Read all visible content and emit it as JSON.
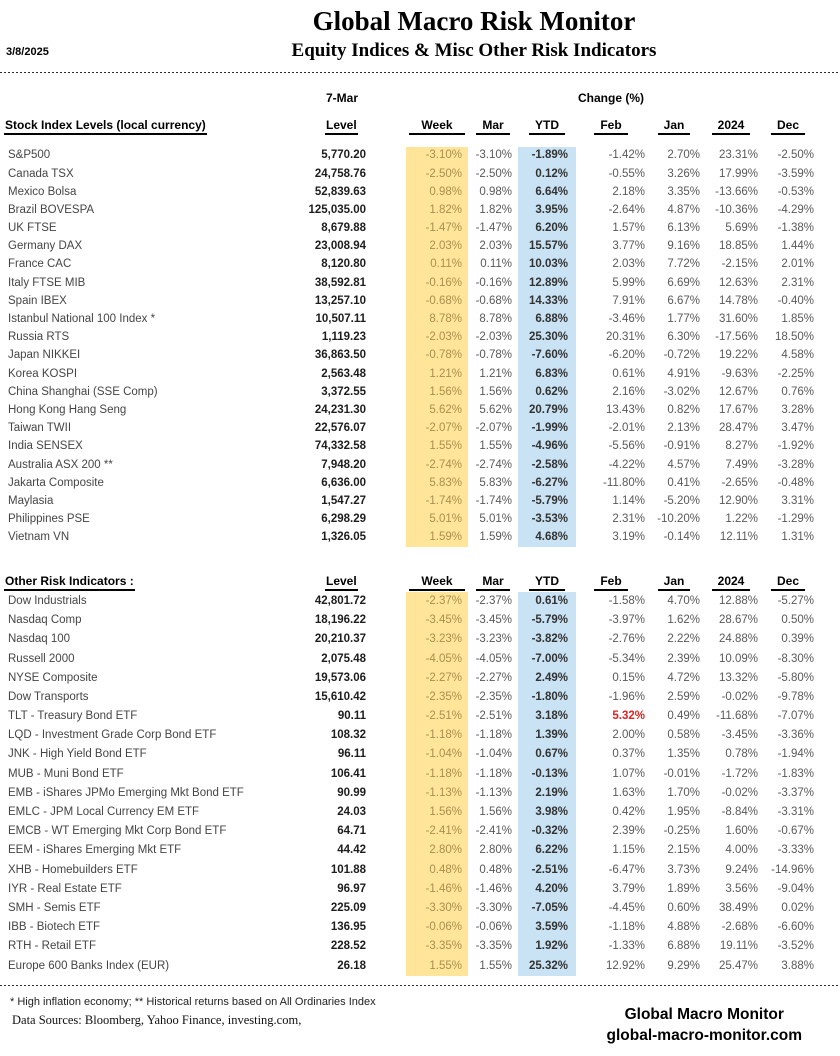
{
  "header": {
    "date": "3/8/2025",
    "title": "Global Macro Risk Monitor",
    "subtitle": "Equity Indices & Misc Other Risk Indicators"
  },
  "columns": {
    "group_date": "7-Mar",
    "group_change": "Change (%)",
    "level": "Level",
    "week": "Week",
    "mar": "Mar",
    "ytd": "YTD",
    "feb": "Feb",
    "jan": "Jan",
    "y2024": "2024",
    "dec": "Dec"
  },
  "colors": {
    "week_band": "#ffe599",
    "week_text": "#a98f4d",
    "ytd_band": "#c9e3f4",
    "red_value": "#dd2222"
  },
  "table1": {
    "section_label": "Stock Index Levels (local currency)",
    "rows": [
      {
        "name": "S&P500",
        "level": "5,770.20",
        "week": "-3.10%",
        "mar": "-3.10%",
        "ytd": "-1.89%",
        "feb": "-1.42%",
        "jan": "2.70%",
        "y2024": "23.31%",
        "dec": "-2.50%"
      },
      {
        "name": "Canada TSX",
        "level": "24,758.76",
        "week": "-2.50%",
        "mar": "-2.50%",
        "ytd": "0.12%",
        "feb": "-0.55%",
        "jan": "3.26%",
        "y2024": "17.99%",
        "dec": "-3.59%"
      },
      {
        "name": "Mexico Bolsa",
        "level": "52,839.63",
        "week": "0.98%",
        "mar": "0.98%",
        "ytd": "6.64%",
        "feb": "2.18%",
        "jan": "3.35%",
        "y2024": "-13.66%",
        "dec": "-0.53%"
      },
      {
        "name": "Brazil BOVESPA",
        "level": "125,035.00",
        "week": "1.82%",
        "mar": "1.82%",
        "ytd": "3.95%",
        "feb": "-2.64%",
        "jan": "4.87%",
        "y2024": "-10.36%",
        "dec": "-4.29%"
      },
      {
        "name": "UK FTSE",
        "level": "8,679.88",
        "week": "-1.47%",
        "mar": "-1.47%",
        "ytd": "6.20%",
        "feb": "1.57%",
        "jan": "6.13%",
        "y2024": "5.69%",
        "dec": "-1.38%"
      },
      {
        "name": "Germany DAX",
        "level": "23,008.94",
        "week": "2.03%",
        "mar": "2.03%",
        "ytd": "15.57%",
        "feb": "3.77%",
        "jan": "9.16%",
        "y2024": "18.85%",
        "dec": "1.44%"
      },
      {
        "name": "France CAC",
        "level": "8,120.80",
        "week": "0.11%",
        "mar": "0.11%",
        "ytd": "10.03%",
        "feb": "2.03%",
        "jan": "7.72%",
        "y2024": "-2.15%",
        "dec": "2.01%"
      },
      {
        "name": "Italy FTSE MIB",
        "level": "38,592.81",
        "week": "-0.16%",
        "mar": "-0.16%",
        "ytd": "12.89%",
        "feb": "5.99%",
        "jan": "6.69%",
        "y2024": "12.63%",
        "dec": "2.31%"
      },
      {
        "name": "Spain IBEX",
        "level": "13,257.10",
        "week": "-0.68%",
        "mar": "-0.68%",
        "ytd": "14.33%",
        "feb": "7.91%",
        "jan": "6.67%",
        "y2024": "14.78%",
        "dec": "-0.40%"
      },
      {
        "name": "Istanbul National 100 Index *",
        "level": "10,507.11",
        "week": "8.78%",
        "mar": "8.78%",
        "ytd": "6.88%",
        "feb": "-3.46%",
        "jan": "1.77%",
        "y2024": "31.60%",
        "dec": "1.85%"
      },
      {
        "name": "Russia RTS",
        "level": "1,119.23",
        "week": "-2.03%",
        "mar": "-2.03%",
        "ytd": "25.30%",
        "feb": "20.31%",
        "jan": "6.30%",
        "y2024": "-17.56%",
        "dec": "18.50%"
      },
      {
        "name": "Japan NIKKEI",
        "level": "36,863.50",
        "week": "-0.78%",
        "mar": "-0.78%",
        "ytd": "-7.60%",
        "feb": "-6.20%",
        "jan": "-0.72%",
        "y2024": "19.22%",
        "dec": "4.58%"
      },
      {
        "name": "Korea KOSPI",
        "level": "2,563.48",
        "week": "1.21%",
        "mar": "1.21%",
        "ytd": "6.83%",
        "feb": "0.61%",
        "jan": "4.91%",
        "y2024": "-9.63%",
        "dec": "-2.25%"
      },
      {
        "name": "China Shanghai (SSE Comp)",
        "level": "3,372.55",
        "week": "1.56%",
        "mar": "1.56%",
        "ytd": "0.62%",
        "feb": "2.16%",
        "jan": "-3.02%",
        "y2024": "12.67%",
        "dec": "0.76%"
      },
      {
        "name": "Hong Kong Hang Seng",
        "level": "24,231.30",
        "week": "5.62%",
        "mar": "5.62%",
        "ytd": "20.79%",
        "feb": "13.43%",
        "jan": "0.82%",
        "y2024": "17.67%",
        "dec": "3.28%"
      },
      {
        "name": "Taiwan  TWII",
        "level": "22,576.07",
        "week": "-2.07%",
        "mar": "-2.07%",
        "ytd": "-1.99%",
        "feb": "-2.01%",
        "jan": "2.13%",
        "y2024": "28.47%",
        "dec": "3.47%"
      },
      {
        "name": "India SENSEX",
        "level": "74,332.58",
        "week": "1.55%",
        "mar": "1.55%",
        "ytd": "-4.96%",
        "feb": "-5.56%",
        "jan": "-0.91%",
        "y2024": "8.27%",
        "dec": "-1.92%"
      },
      {
        "name": "Australia ASX 200 **",
        "level": "7,948.20",
        "week": "-2.74%",
        "mar": "-2.74%",
        "ytd": "-2.58%",
        "feb": "-4.22%",
        "jan": "4.57%",
        "y2024": "7.49%",
        "dec": "-3.28%"
      },
      {
        "name": "Jakarta Composite",
        "level": "6,636.00",
        "week": "5.83%",
        "mar": "5.83%",
        "ytd": "-6.27%",
        "feb": "-11.80%",
        "jan": "0.41%",
        "y2024": "-2.65%",
        "dec": "-0.48%"
      },
      {
        "name": "Maylasia",
        "level": "1,547.27",
        "week": "-1.74%",
        "mar": "-1.74%",
        "ytd": "-5.79%",
        "feb": "1.14%",
        "jan": "-5.20%",
        "y2024": "12.90%",
        "dec": "3.31%"
      },
      {
        "name": "Philippines PSE",
        "level": "6,298.29",
        "week": "5.01%",
        "mar": "5.01%",
        "ytd": "-3.53%",
        "feb": "2.31%",
        "jan": "-10.20%",
        "y2024": "1.22%",
        "dec": "-1.29%"
      },
      {
        "name": "Vietnam VN",
        "level": "1,326.05",
        "week": "1.59%",
        "mar": "1.59%",
        "ytd": "4.68%",
        "feb": "3.19%",
        "jan": "-0.14%",
        "y2024": "12.11%",
        "dec": "1.31%"
      }
    ]
  },
  "table2": {
    "section_label": "Other Risk Indicators :",
    "rows": [
      {
        "name": "Dow Industrials",
        "level": "42,801.72",
        "week": "-2.37%",
        "mar": "-2.37%",
        "ytd": "0.61%",
        "feb": "-1.58%",
        "jan": "4.70%",
        "y2024": "12.88%",
        "dec": "-5.27%"
      },
      {
        "name": "Nasdaq Comp",
        "level": "18,196.22",
        "week": "-3.45%",
        "mar": "-3.45%",
        "ytd": "-5.79%",
        "feb": "-3.97%",
        "jan": "1.62%",
        "y2024": "28.67%",
        "dec": "0.50%"
      },
      {
        "name": "Nasdaq 100",
        "level": "20,210.37",
        "week": "-3.23%",
        "mar": "-3.23%",
        "ytd": "-3.82%",
        "feb": "-2.76%",
        "jan": "2.22%",
        "y2024": "24.88%",
        "dec": "0.39%"
      },
      {
        "name": "Russell 2000",
        "level": "2,075.48",
        "week": "-4.05%",
        "mar": "-4.05%",
        "ytd": "-7.00%",
        "feb": "-5.34%",
        "jan": "2.39%",
        "y2024": "10.09%",
        "dec": "-8.30%"
      },
      {
        "name": "NYSE Composite",
        "level": "19,573.06",
        "week": "-2.27%",
        "mar": "-2.27%",
        "ytd": "2.49%",
        "feb": "0.15%",
        "jan": "4.72%",
        "y2024": "13.32%",
        "dec": "-5.80%"
      },
      {
        "name": "Dow Transports",
        "level": "15,610.42",
        "week": "-2.35%",
        "mar": "-2.35%",
        "ytd": "-1.80%",
        "feb": "-1.96%",
        "jan": "2.59%",
        "y2024": "-0.02%",
        "dec": "-9.78%"
      },
      {
        "name": "TLT - Treasury Bond ETF",
        "level": "90.11",
        "week": "-2.51%",
        "mar": "-2.51%",
        "ytd": "3.18%",
        "feb": "5.32%",
        "feb_red": true,
        "jan": "0.49%",
        "y2024": "-11.68%",
        "dec": "-7.07%"
      },
      {
        "name": "LQD - Investment Grade Corp Bond ETF",
        "level": "108.32",
        "week": "-1.18%",
        "mar": "-1.18%",
        "ytd": "1.39%",
        "feb": "2.00%",
        "jan": "0.58%",
        "y2024": "-3.45%",
        "dec": "-3.36%"
      },
      {
        "name": "JNK - High Yield Bond ETF",
        "level": "96.11",
        "week": "-1.04%",
        "mar": "-1.04%",
        "ytd": "0.67%",
        "feb": "0.37%",
        "jan": "1.35%",
        "y2024": "0.78%",
        "dec": "-1.94%"
      },
      {
        "name": "MUB - Muni Bond ETF",
        "level": "106.41",
        "week": "-1.18%",
        "mar": "-1.18%",
        "ytd": "-0.13%",
        "feb": "1.07%",
        "jan": "-0.01%",
        "y2024": "-1.72%",
        "dec": "-1.83%"
      },
      {
        "name": "EMB - iShares JPMo Emerging Mkt Bond ETF",
        "level": "90.99",
        "week": "-1.13%",
        "mar": "-1.13%",
        "ytd": "2.19%",
        "feb": "1.63%",
        "jan": "1.70%",
        "y2024": "-0.02%",
        "dec": "-3.37%"
      },
      {
        "name": "EMLC - JPM Local Currency EM ETF",
        "level": "24.03",
        "week": "1.56%",
        "mar": "1.56%",
        "ytd": "3.98%",
        "feb": "0.42%",
        "jan": "1.95%",
        "y2024": "-8.84%",
        "dec": "-3.31%"
      },
      {
        "name": "EMCB - WT Emerging Mkt Corp Bond ETF",
        "level": "64.71",
        "week": "-2.41%",
        "mar": "-2.41%",
        "ytd": "-0.32%",
        "feb": "2.39%",
        "jan": "-0.25%",
        "y2024": "1.60%",
        "dec": "-0.67%"
      },
      {
        "name": "EEM - iShares Emerging Mkt ETF",
        "level": "44.42",
        "week": "2.80%",
        "mar": "2.80%",
        "ytd": "6.22%",
        "feb": "1.15%",
        "jan": "2.15%",
        "y2024": "4.00%",
        "dec": "-3.33%"
      },
      {
        "name": "XHB - Homebuilders ETF",
        "level": "101.88",
        "week": "0.48%",
        "mar": "0.48%",
        "ytd": "-2.51%",
        "feb": "-6.47%",
        "jan": "3.73%",
        "y2024": "9.24%",
        "dec": "-14.96%"
      },
      {
        "name": "IYR - Real Estate ETF",
        "level": "96.97",
        "week": "-1.46%",
        "mar": "-1.46%",
        "ytd": "4.20%",
        "feb": "3.79%",
        "jan": "1.89%",
        "y2024": "3.56%",
        "dec": "-9.04%"
      },
      {
        "name": "SMH - Semis ETF",
        "level": "225.09",
        "week": "-3.30%",
        "mar": "-3.30%",
        "ytd": "-7.05%",
        "feb": "-4.45%",
        "jan": "0.60%",
        "y2024": "38.49%",
        "dec": "0.02%"
      },
      {
        "name": "IBB - Biotech ETF",
        "level": "136.95",
        "week": "-0.06%",
        "mar": "-0.06%",
        "ytd": "3.59%",
        "feb": "-1.18%",
        "jan": "4.88%",
        "y2024": "-2.68%",
        "dec": "-6.60%"
      },
      {
        "name": "RTH - Retail ETF",
        "level": "228.52",
        "week": "-3.35%",
        "mar": "-3.35%",
        "ytd": "1.92%",
        "feb": "-1.33%",
        "jan": "6.88%",
        "y2024": "19.11%",
        "dec": "-3.52%"
      },
      {
        "name": "Europe 600 Banks Index (EUR)",
        "level": "26.18",
        "week": "1.55%",
        "mar": "1.55%",
        "ytd": "25.32%",
        "feb": "12.92%",
        "jan": "9.29%",
        "y2024": "25.47%",
        "dec": "3.88%"
      }
    ]
  },
  "footer": {
    "note": "*  High inflation economy;  **  Historical returns based on All Ordinaries Index",
    "sources": "Data Sources:  Bloomberg,   Yahoo Finance, investing.com,",
    "brand_line1": "Global Macro Monitor",
    "brand_line2": "global-macro-monitor.com"
  }
}
